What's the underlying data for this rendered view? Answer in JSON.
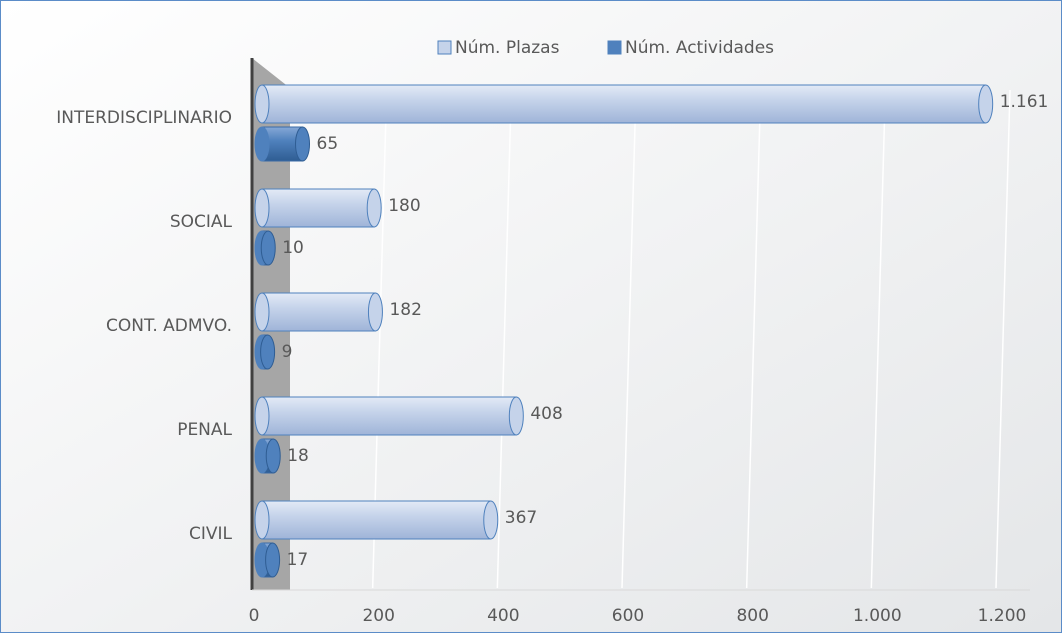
{
  "chart_data": {
    "type": "bar",
    "orientation": "horizontal",
    "categories": [
      "INTERDISCIPLINARIO",
      "SOCIAL",
      "CONT. ADMVO.",
      "PENAL",
      "CIVIL"
    ],
    "series": [
      {
        "name": "Núm. Plazas",
        "color": "#c5d3ea",
        "values": [
          1161,
          180,
          182,
          408,
          367
        ],
        "value_labels": [
          "1.161",
          "180",
          "182",
          "408",
          "367"
        ]
      },
      {
        "name": "Núm. Actividades",
        "color": "#4f81bd",
        "values": [
          65,
          10,
          9,
          18,
          17
        ]
      }
    ],
    "xlim": [
      0,
      1200
    ],
    "xticks": [
      0,
      200,
      400,
      600,
      800,
      {
        "value": 1000,
        "label": "1.000"
      },
      {
        "value": 1200,
        "label": "1.200"
      }
    ],
    "grid": true,
    "legend": "top"
  }
}
